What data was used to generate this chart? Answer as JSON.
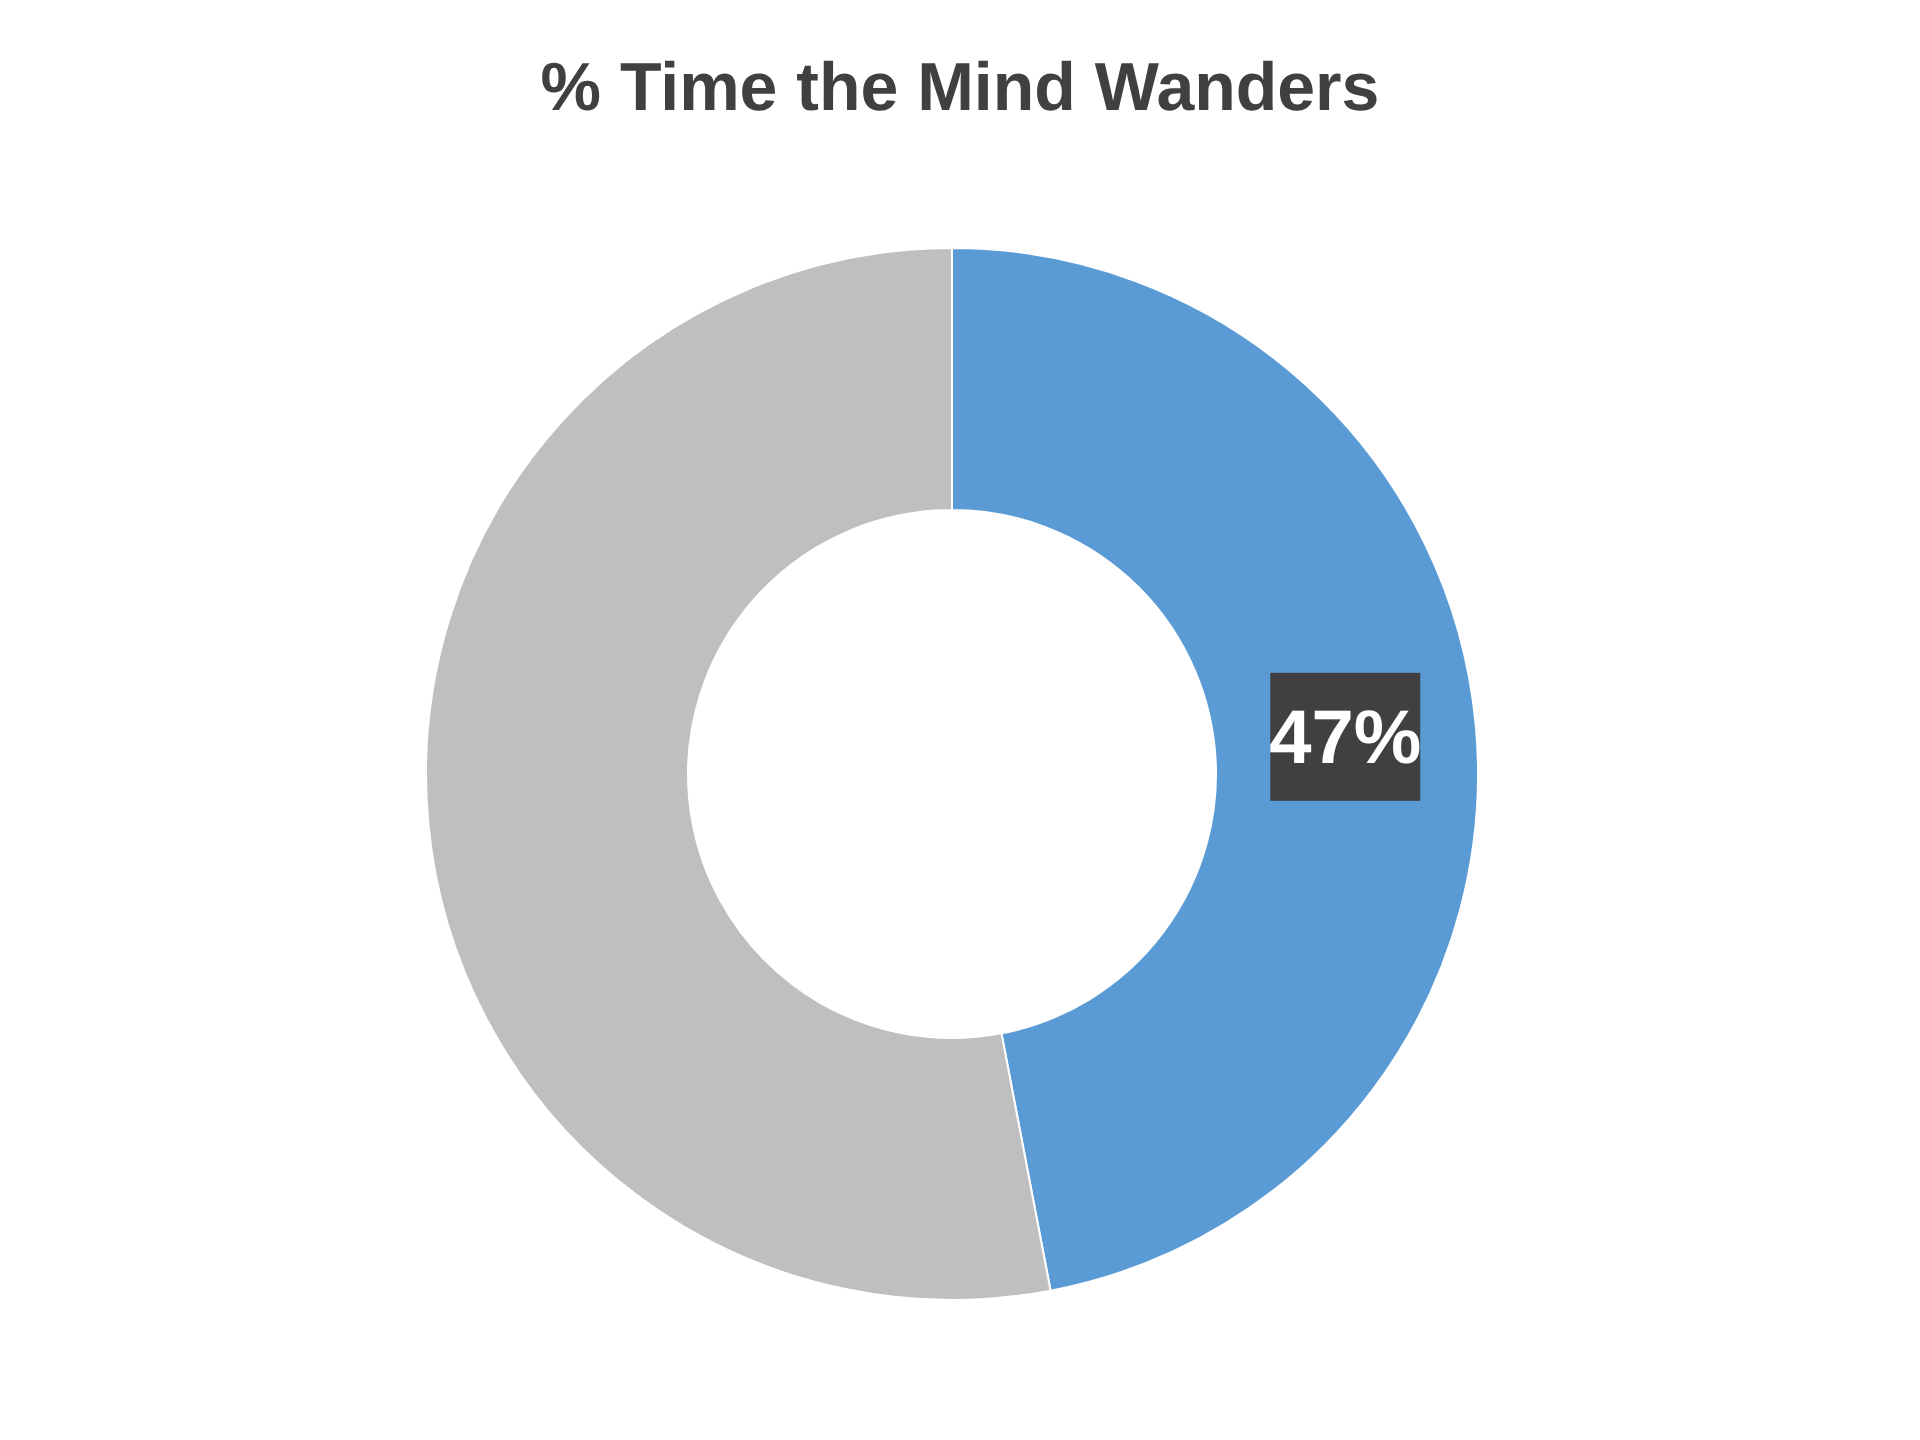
{
  "chart_data": {
    "type": "donut",
    "title": "% Time the Mind Wanders",
    "categories": [
      null,
      null
    ],
    "values": [
      47,
      53
    ],
    "colors": [
      "#5b9bd5",
      "#bfbfbf"
    ],
    "value_labels": [
      "47%",
      null
    ]
  }
}
